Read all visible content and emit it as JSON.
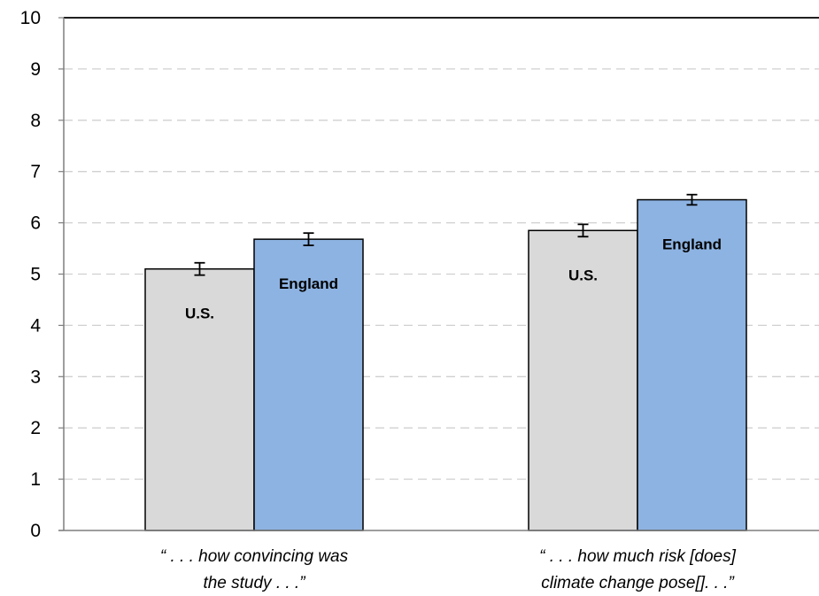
{
  "chart_data": {
    "type": "bar",
    "categories": [
      [
        "“ . . . how convincing was",
        "the study . . .”"
      ],
      [
        "“ . . . how much risk [does]",
        "climate change pose[]. . .”"
      ]
    ],
    "series": [
      {
        "name": "U.S.",
        "color": "#d9d9d9",
        "values": [
          5.1,
          5.85
        ],
        "errors": [
          0.12,
          0.12
        ]
      },
      {
        "name": "England",
        "color": "#8db3e2",
        "values": [
          5.68,
          6.45
        ],
        "errors": [
          0.12,
          0.1
        ]
      }
    ],
    "ylim": [
      0,
      10
    ],
    "yticks": [
      0,
      1,
      2,
      3,
      4,
      5,
      6,
      7,
      8,
      9,
      10
    ],
    "grid": true,
    "title": "",
    "xlabel": "",
    "ylabel": ""
  }
}
